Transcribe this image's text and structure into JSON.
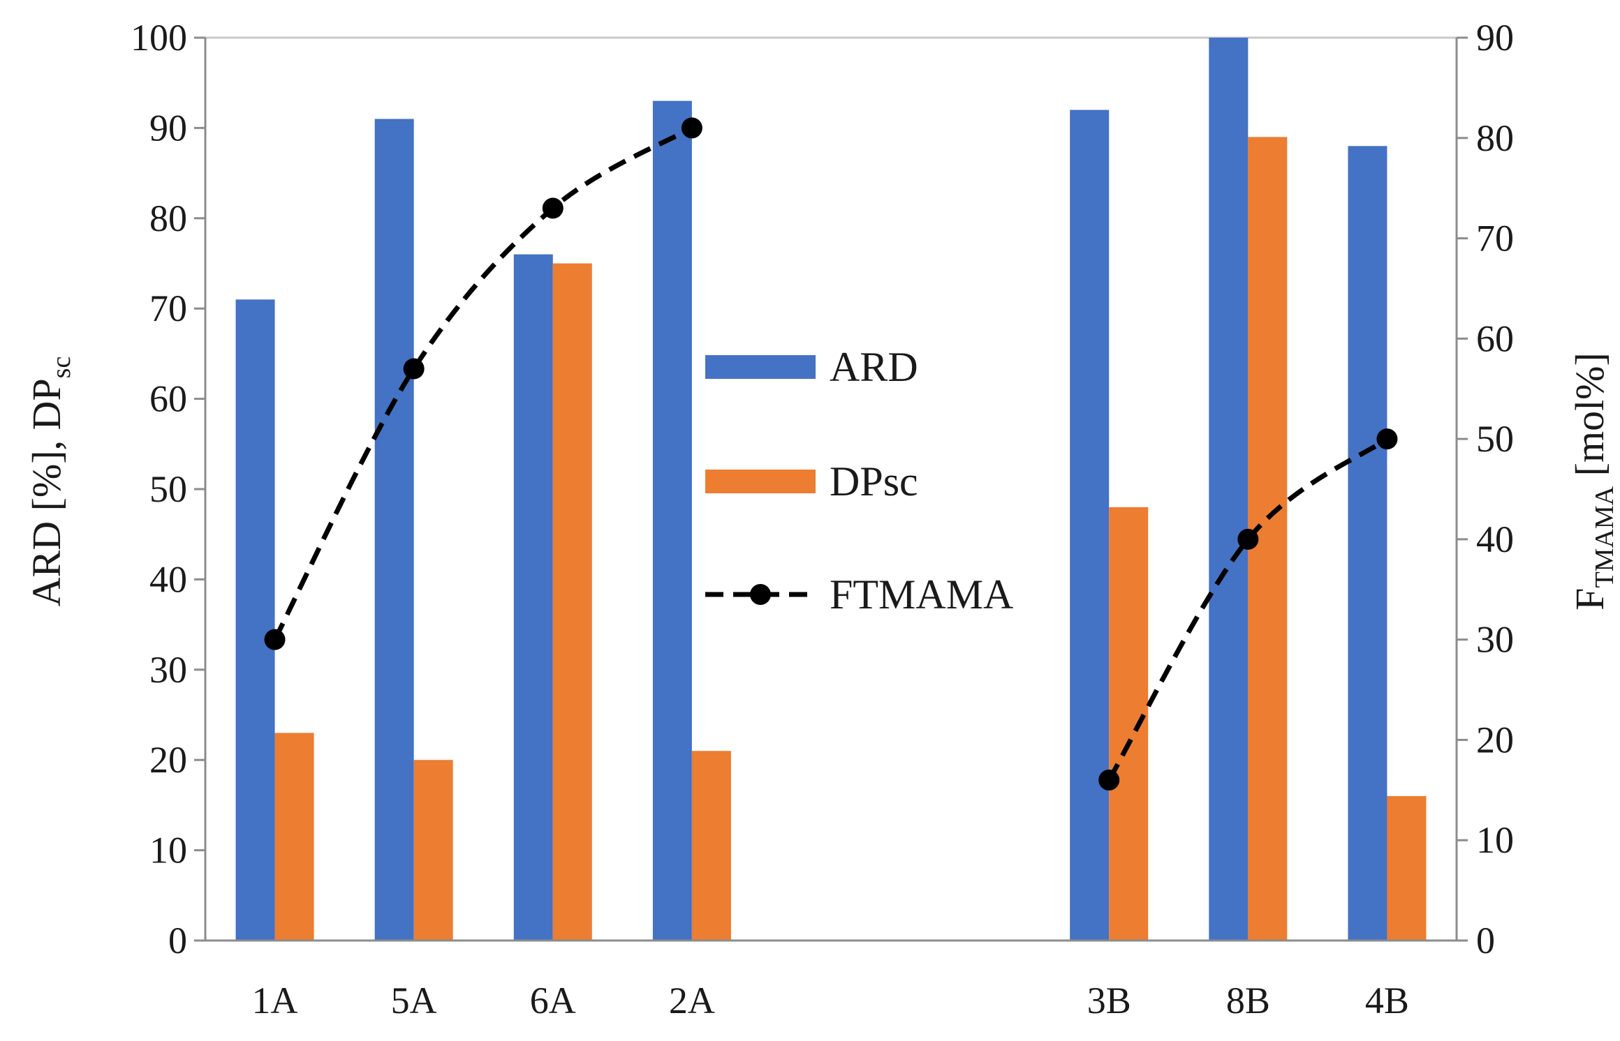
{
  "chart_data": {
    "type": "bar",
    "categories": [
      "1A",
      "5A",
      "6A",
      "2A",
      "",
      "",
      "3B",
      "8B",
      "4B"
    ],
    "series": [
      {
        "name": "ARD",
        "axis": "left",
        "color": "#4472c4",
        "values": [
          71,
          91,
          76,
          93,
          null,
          null,
          92,
          100,
          88
        ]
      },
      {
        "name": "DPsc",
        "axis": "left",
        "color": "#ed7d31",
        "values": [
          23,
          20,
          75,
          21,
          null,
          null,
          48,
          89,
          16
        ]
      },
      {
        "name": "FTMAMA",
        "type": "line",
        "style": "dashed",
        "marker": "circle",
        "axis": "right",
        "color": "#000000",
        "groups": [
          {
            "categories": [
              "1A",
              "5A",
              "6A",
              "2A"
            ],
            "values": [
              30,
              57,
              73,
              81
            ]
          },
          {
            "categories": [
              "3B",
              "8B",
              "4B"
            ],
            "values": [
              16,
              40,
              50
            ]
          }
        ]
      }
    ],
    "left_axis": {
      "label_main": "ARD [%], DP",
      "label_sub": "sc",
      "ylim": [
        0,
        100
      ],
      "ticks": [
        "0",
        "10",
        "20",
        "30",
        "40",
        "50",
        "60",
        "70",
        "80",
        "90",
        "100"
      ]
    },
    "right_axis": {
      "label_main": "F",
      "label_sub": "TMAMA",
      "label_tail": " [mol%]",
      "ylim": [
        0,
        90
      ],
      "ticks": [
        "0",
        "10",
        "20",
        "30",
        "40",
        "50",
        "60",
        "70",
        "80",
        "90"
      ]
    },
    "legend": {
      "position": "center",
      "entries": [
        "ARD",
        "DPsc",
        "FTMAMA"
      ]
    },
    "grid": false
  }
}
